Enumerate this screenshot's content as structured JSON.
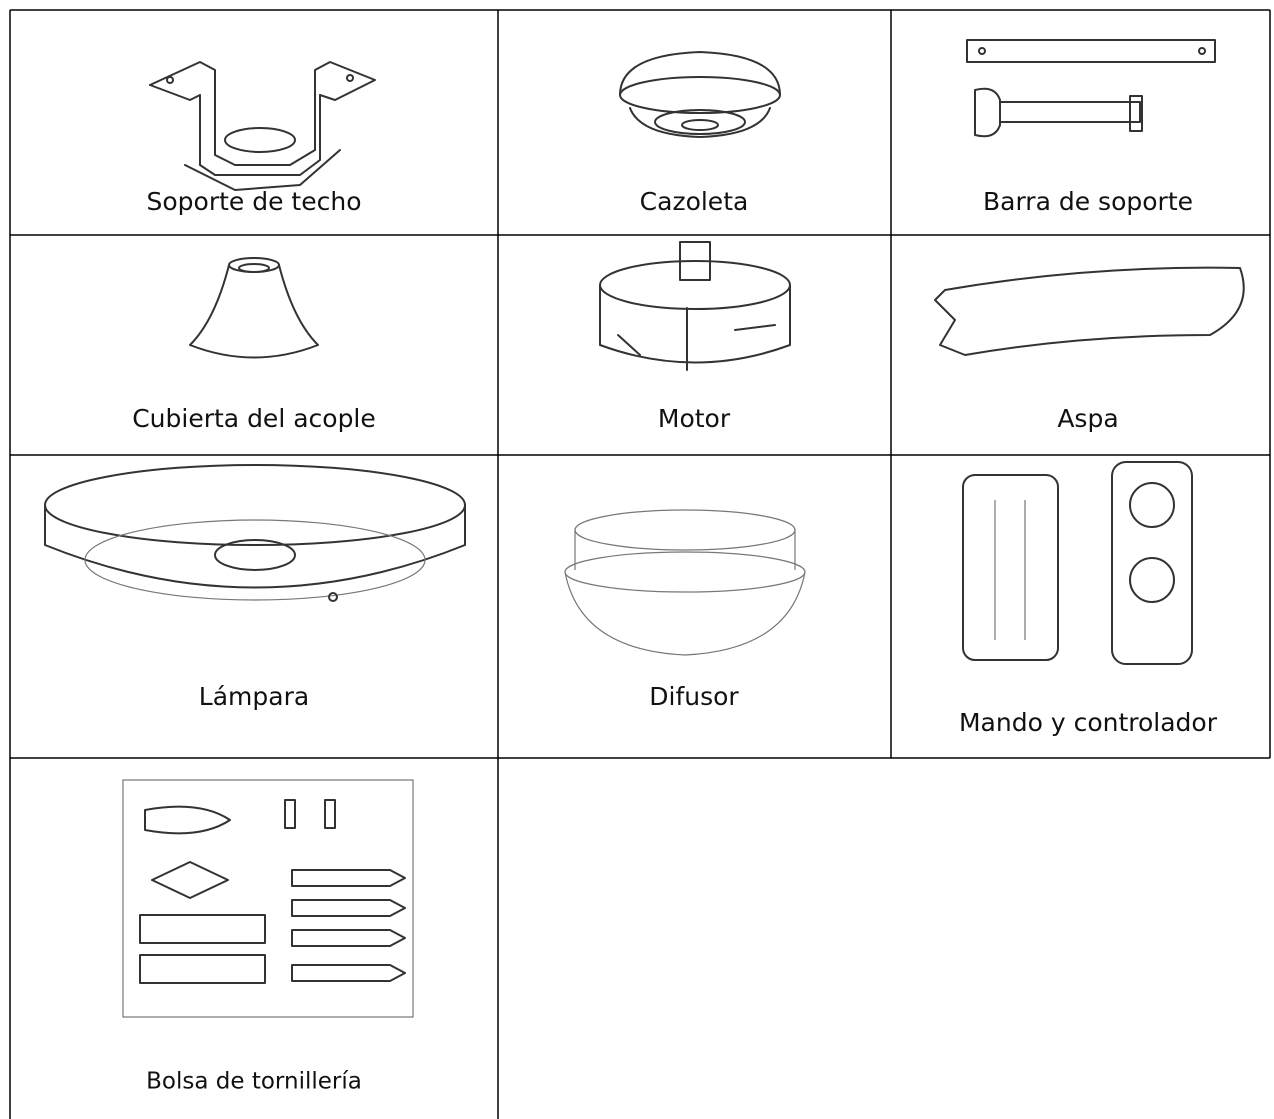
{
  "table": {
    "rows": [
      [
        "Soporte de techo",
        "Cazoleta",
        "Barra de soporte"
      ],
      [
        "Cubierta del acople",
        "Motor",
        "Aspa"
      ],
      [
        "Lámpara",
        "Difusor",
        "Mando y controlador"
      ],
      [
        "Bolsa de tornillería"
      ]
    ]
  }
}
